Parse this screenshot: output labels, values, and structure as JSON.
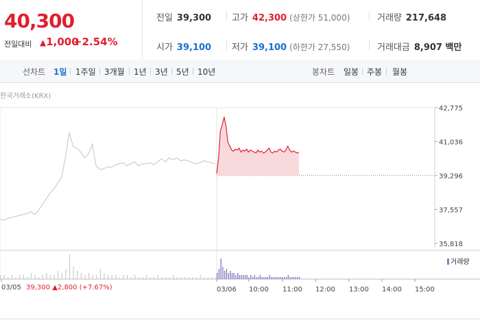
{
  "quote": {
    "price": "40,300",
    "change_label": "전일대비",
    "change_arrow": "▲",
    "change_value": "1,000",
    "change_pct": "+2.54%",
    "prev_close_label": "전일",
    "prev_close": "39,300",
    "high_label": "고가",
    "high": "42,300",
    "upper_limit": "(상한가 51,000)",
    "volume_label": "거래량",
    "volume": "217,648",
    "open_label": "시가",
    "open": "39,100",
    "low_label": "저가",
    "low": "39,100",
    "lower_limit": "(하한가 27,550)",
    "trade_value_label": "거래대금",
    "trade_value": "8,907 백만"
  },
  "toolbar": {
    "line_chart_label": "선차트",
    "periods": [
      "1일",
      "1주일",
      "3개월",
      "1년",
      "3년",
      "5년",
      "10년"
    ],
    "active_period": "1일",
    "candle_label": "봉차트",
    "candles": [
      "일봉",
      "주봉",
      "월봉"
    ]
  },
  "source_label": "한국거래소(KRX)",
  "volume_legend": "거래량",
  "prev_day_info": {
    "date": "03/05",
    "price": "39,300",
    "arrow": "▲",
    "change": "2,800",
    "pct": "(+7.67%)"
  },
  "colors": {
    "up": "#e01f2f",
    "down": "#1b6ed2",
    "prev_line": "#cccccc",
    "volume": "#8d7cc2"
  },
  "chart_data": {
    "type": "line",
    "y_ticks": [
      "42,775",
      "41,036",
      "39,296",
      "37,557",
      "35,818"
    ],
    "ylim": [
      35818,
      42775
    ],
    "x_ticks": [
      "03/05",
      "03/06",
      "10:00",
      "11:00",
      "12:00",
      "13:00",
      "14:00",
      "15:00"
    ],
    "reference_line": 39300,
    "series": [
      {
        "values": [
          37050,
          37000,
          37100,
          37150,
          37200,
          37250,
          37300,
          37350,
          37450,
          37300,
          37500,
          37800,
          38100,
          38400,
          38600,
          38900,
          39200,
          40200,
          41500,
          40800,
          40700,
          40500,
          40200,
          40400,
          40900,
          39800,
          39600,
          39650,
          39750,
          39700,
          39850,
          39900,
          39950,
          39800,
          39900,
          40000,
          39800,
          39900,
          39900,
          39950,
          39850,
          40000,
          40150,
          40000,
          40200,
          40100,
          40200,
          40050,
          40100,
          40050,
          39950,
          39900,
          39950,
          40050,
          40000,
          39950,
          39900
        ]
      },
      {
        "values": [
          39400,
          40200,
          41600,
          41900,
          42300,
          41800,
          41000,
          40800,
          40600,
          40550,
          40650,
          40600,
          40700,
          40500,
          40600,
          40550,
          40650,
          40500,
          40600,
          40550,
          40500,
          40450,
          40600,
          40500,
          40550,
          40450,
          40500,
          40600,
          40700,
          40500,
          40450,
          40550,
          40500,
          40600,
          40650,
          40550,
          40500,
          40600,
          40800,
          40600,
          40500,
          40550,
          40500,
          40450,
          40500
        ]
      }
    ]
  },
  "volume_data": {
    "prev_day": [
      2,
      2,
      1,
      2,
      1,
      2,
      2,
      1,
      3,
      2,
      1,
      2,
      3,
      2,
      2,
      4,
      3,
      5,
      12,
      6,
      4,
      3,
      2,
      3,
      2,
      2,
      5,
      3,
      2,
      2,
      2,
      1,
      2,
      2,
      1,
      2,
      1,
      1,
      2,
      1,
      1,
      2,
      1,
      1,
      1,
      2,
      1,
      1,
      1,
      1,
      1,
      1,
      2,
      1,
      1,
      1,
      1
    ],
    "today": [
      3,
      5,
      10,
      6,
      4,
      5,
      3,
      4,
      3,
      3,
      2,
      3,
      2,
      2,
      2,
      2,
      2,
      1,
      2,
      1,
      2,
      1,
      1,
      2,
      1,
      1,
      1,
      1,
      2,
      1,
      1,
      1,
      1,
      1,
      1,
      1,
      1,
      1,
      2,
      1,
      1,
      1,
      1,
      1,
      1
    ]
  }
}
